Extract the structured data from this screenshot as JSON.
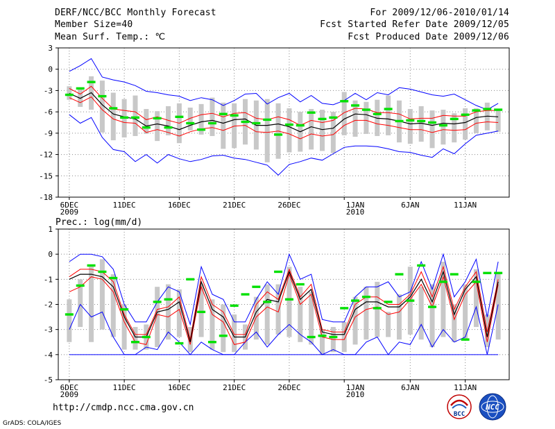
{
  "header": {
    "title": "DERF/NCC/BCC Monthly Forecast",
    "member_size": "Member Size=40",
    "variable": "Mean Surf. Temp.: ℃",
    "period": "For 2009/12/06-2010/01/14",
    "start_date": "Fcst Started Refer Date 2009/12/05",
    "produced_date": "Fcst Produced Date 2009/12/06"
  },
  "footer": {
    "url": "http://cmdp.ncc.cma.gov.cn",
    "credit": "GrADS: COLA/IGES",
    "logo_left_text": "BCC",
    "logo_right_text": "NCC"
  },
  "colors": {
    "ensemble_max_min": "#0000ff",
    "spread": "#ff0000",
    "mean": "#000000",
    "observed": "#00e000",
    "box": "#c8c8c8"
  },
  "chart_data": [
    {
      "type": "line",
      "name": "temperature",
      "title": "",
      "ylabel": "",
      "ylim": [
        -18,
        3
      ],
      "yticks": [
        3,
        0,
        -3,
        -6,
        -9,
        -12,
        -15,
        -18
      ],
      "x": [
        1,
        2,
        3,
        4,
        5,
        6,
        7,
        8,
        9,
        10,
        11,
        12,
        13,
        14,
        15,
        16,
        17,
        18,
        19,
        20,
        21,
        22,
        23,
        24,
        25,
        26,
        27,
        28,
        29,
        30,
        31,
        32,
        33,
        34,
        35,
        36,
        37,
        38,
        39,
        40
      ],
      "x_tick_positions": [
        1,
        6,
        11,
        16,
        21,
        26,
        32,
        37,
        42
      ],
      "x_tick_labels": [
        "6DEC",
        "11DEC",
        "16DEC",
        "21DEC",
        "26DEC",
        "1JAN",
        "6JAN",
        "11JAN"
      ],
      "x_tick_label_days": [
        1,
        6,
        11,
        16,
        21,
        27,
        32,
        37
      ],
      "x_year_labels": [
        {
          "day": 1,
          "label": "2009"
        },
        {
          "day": 27,
          "label": "2010"
        }
      ],
      "series": [
        {
          "name": "max",
          "values": [
            -0.3,
            0.5,
            1.5,
            -1.1,
            -1.5,
            -1.8,
            -2.3,
            -3.1,
            -3.3,
            -3.6,
            -3.8,
            -4.4,
            -4.0,
            -4.3,
            -5.1,
            -4.4,
            -3.5,
            -3.4,
            -4.9,
            -4.0,
            -3.4,
            -4.6,
            -3.7,
            -4.8,
            -5.0,
            -4.4,
            -3.4,
            -4.3,
            -3.3,
            -3.6,
            -2.6,
            -2.8,
            -3.2,
            -3.6,
            -3.8,
            -3.5,
            -4.3,
            -5.1,
            -5.7,
            -4.8
          ]
        },
        {
          "name": "upper",
          "values": [
            -2.7,
            -3.5,
            -2.4,
            -4.1,
            -5.6,
            -5.8,
            -6.0,
            -7.1,
            -6.7,
            -7.2,
            -7.6,
            -6.9,
            -6.4,
            -6.2,
            -6.7,
            -6.2,
            -6.1,
            -6.9,
            -7.1,
            -6.7,
            -7.1,
            -7.9,
            -7.2,
            -7.5,
            -7.2,
            -6.1,
            -5.5,
            -5.6,
            -6.1,
            -6.1,
            -6.3,
            -7.0,
            -6.9,
            -6.9,
            -6.5,
            -6.6,
            -6.6,
            -6.0,
            -5.8,
            -5.8
          ]
        },
        {
          "name": "mean",
          "values": [
            -3.4,
            -4.1,
            -3.3,
            -5.0,
            -6.3,
            -6.7,
            -7.0,
            -8.0,
            -7.7,
            -8.0,
            -8.5,
            -7.9,
            -7.4,
            -7.2,
            -7.6,
            -7.1,
            -7.0,
            -7.9,
            -7.9,
            -7.7,
            -8.1,
            -8.8,
            -8.1,
            -8.5,
            -8.3,
            -7.0,
            -6.3,
            -6.4,
            -6.9,
            -7.0,
            -7.3,
            -7.7,
            -7.6,
            -7.9,
            -7.6,
            -7.7,
            -7.5,
            -6.8,
            -6.6,
            -6.7
          ]
        },
        {
          "name": "lower",
          "values": [
            -4.0,
            -4.7,
            -3.9,
            -5.7,
            -7.0,
            -7.5,
            -7.6,
            -8.9,
            -8.5,
            -8.9,
            -9.4,
            -8.8,
            -8.4,
            -8.2,
            -8.6,
            -8.0,
            -7.9,
            -8.8,
            -8.9,
            -8.7,
            -9.1,
            -9.8,
            -9.1,
            -9.4,
            -9.2,
            -7.9,
            -7.2,
            -7.2,
            -7.7,
            -7.9,
            -8.2,
            -8.5,
            -8.5,
            -8.9,
            -8.5,
            -8.6,
            -8.5,
            -7.6,
            -7.4,
            -7.5
          ]
        },
        {
          "name": "min",
          "values": [
            -6.4,
            -7.6,
            -6.8,
            -9.6,
            -11.3,
            -11.6,
            -13.0,
            -12.0,
            -13.2,
            -12.0,
            -12.6,
            -13.0,
            -12.7,
            -12.2,
            -12.1,
            -12.5,
            -12.7,
            -13.1,
            -13.5,
            -14.9,
            -13.4,
            -13.0,
            -12.5,
            -12.8,
            -11.9,
            -11.0,
            -10.8,
            -10.8,
            -10.9,
            -11.2,
            -11.6,
            -11.7,
            -12.1,
            -12.4,
            -11.2,
            -11.9,
            -10.5,
            -9.3,
            -9.0,
            -8.7
          ]
        },
        {
          "name": "box_top",
          "values": [
            -2.4,
            -2.8,
            -1.0,
            -1.6,
            -3.3,
            -4.2,
            -3.7,
            -5.6,
            -5.9,
            -5.2,
            -4.8,
            -5.4,
            -4.9,
            -4.0,
            -4.7,
            -4.8,
            -4.2,
            -4.4,
            -4.2,
            -4.8,
            -5.5,
            -6.0,
            -5.6,
            -5.7,
            -6.0,
            -3.2,
            -4.4,
            -4.6,
            -4.3,
            -3.7,
            -4.4,
            -5.6,
            -5.2,
            -5.8,
            -5.7,
            -6.2,
            -5.5,
            -5.5,
            -4.7,
            -5.6
          ]
        },
        {
          "name": "box_bottom",
          "values": [
            -4.3,
            -5.3,
            -5.7,
            -8.9,
            -10.0,
            -9.6,
            -9.4,
            -9.1,
            -10.1,
            -9.3,
            -10.4,
            -8.6,
            -9.2,
            -9.4,
            -11.2,
            -11.1,
            -10.6,
            -11.3,
            -13.1,
            -12.6,
            -11.7,
            -11.6,
            -11.3,
            -11.5,
            -11.8,
            -9.3,
            -9.5,
            -9.1,
            -9.4,
            -9.3,
            -10.3,
            -10.5,
            -10.2,
            -11.1,
            -10.6,
            -10.3,
            -9.9,
            -9.0,
            -8.6,
            -8.8
          ]
        },
        {
          "name": "observed",
          "values": [
            -3.6,
            -2.7,
            -1.8,
            -3.8,
            -5.5,
            -6.8,
            -6.8,
            -8.2,
            -6.9,
            -8.2,
            -6.7,
            -7.6,
            -8.5,
            -7.6,
            -6.3,
            -6.5,
            -7.4,
            -7.6,
            -7.1,
            -9.2,
            -7.8,
            -7.9,
            -6.1,
            -7.0,
            -6.8,
            -4.5,
            -5.1,
            -5.7,
            -6.3,
            -5.6,
            -7.3,
            -7.2,
            -7.3,
            -7.5,
            -7.9,
            -7.0,
            -6.4,
            -5.8,
            -5.6,
            -5.7
          ]
        }
      ]
    },
    {
      "type": "line",
      "name": "precipitation",
      "title": "Prec.: log(mm/d)",
      "ylabel": "",
      "ylim": [
        -5,
        1
      ],
      "yticks": [
        1,
        0,
        -1,
        -2,
        -3,
        -4,
        -5
      ],
      "x": [
        1,
        2,
        3,
        4,
        5,
        6,
        7,
        8,
        9,
        10,
        11,
        12,
        13,
        14,
        15,
        16,
        17,
        18,
        19,
        20,
        21,
        22,
        23,
        24,
        25,
        26,
        27,
        28,
        29,
        30,
        31,
        32,
        33,
        34,
        35,
        36,
        37,
        38,
        39,
        40
      ],
      "x_tick_positions": [
        1,
        6,
        11,
        16,
        21,
        26,
        32,
        37,
        42
      ],
      "x_tick_labels": [
        "6DEC",
        "11DEC",
        "16DEC",
        "21DEC",
        "26DEC",
        "1JAN",
        "6JAN",
        "11JAN"
      ],
      "x_tick_label_days": [
        1,
        6,
        11,
        16,
        21,
        27,
        32,
        37
      ],
      "x_year_labels": [
        {
          "day": 1,
          "label": "2009"
        },
        {
          "day": 27,
          "label": "2010"
        }
      ],
      "series": [
        {
          "name": "max",
          "values": [
            -0.3,
            0.0,
            0.0,
            -0.1,
            -0.6,
            -2.0,
            -2.7,
            -2.7,
            -1.9,
            -1.3,
            -1.5,
            -2.8,
            -0.5,
            -1.6,
            -1.8,
            -2.7,
            -2.7,
            -1.8,
            -1.1,
            -1.6,
            0.0,
            -1.0,
            -0.8,
            -2.6,
            -2.7,
            -2.7,
            -1.7,
            -1.3,
            -1.3,
            -1.1,
            -1.7,
            -1.5,
            -0.3,
            -1.4,
            0.0,
            -1.7,
            -1.1,
            -0.2,
            -2.5,
            -0.3
          ]
        },
        {
          "name": "upper",
          "values": [
            -0.9,
            -0.6,
            -0.6,
            -0.7,
            -1.1,
            -2.4,
            -3.2,
            -3.2,
            -2.2,
            -2.1,
            -1.7,
            -3.4,
            -0.9,
            -2.0,
            -2.3,
            -3.2,
            -3.2,
            -2.0,
            -1.5,
            -1.8,
            -0.6,
            -1.7,
            -1.2,
            -3.0,
            -3.1,
            -3.1,
            -2.0,
            -1.7,
            -1.7,
            -2.0,
            -2.0,
            -1.6,
            -0.7,
            -1.7,
            -0.5,
            -2.2,
            -1.3,
            -0.7,
            -3.1,
            -1.0
          ]
        },
        {
          "name": "mean",
          "values": [
            -1.0,
            -0.8,
            -0.8,
            -0.9,
            -1.3,
            -2.5,
            -3.3,
            -3.3,
            -2.3,
            -2.2,
            -1.9,
            -3.5,
            -1.1,
            -2.2,
            -2.5,
            -3.3,
            -3.3,
            -2.3,
            -1.8,
            -1.9,
            -0.7,
            -1.8,
            -1.4,
            -3.1,
            -3.2,
            -3.2,
            -2.2,
            -1.9,
            -1.9,
            -2.1,
            -2.1,
            -1.7,
            -1.0,
            -1.9,
            -0.7,
            -2.4,
            -1.4,
            -0.9,
            -3.3,
            -1.1
          ]
        },
        {
          "name": "lower",
          "values": [
            -1.5,
            -1.3,
            -0.9,
            -1.0,
            -1.5,
            -2.7,
            -3.5,
            -3.6,
            -2.4,
            -2.5,
            -2.2,
            -3.6,
            -1.3,
            -2.4,
            -2.7,
            -3.6,
            -3.5,
            -2.5,
            -2.1,
            -2.3,
            -0.8,
            -2.0,
            -1.6,
            -3.3,
            -3.4,
            -3.4,
            -2.5,
            -2.2,
            -2.1,
            -2.4,
            -2.3,
            -1.8,
            -1.2,
            -2.1,
            -0.9,
            -2.6,
            -1.6,
            -1.1,
            -3.5,
            -1.2
          ]
        },
        {
          "name": "min",
          "values": [
            -3.0,
            -2.0,
            -2.5,
            -2.3,
            -3.3,
            -4.0,
            -4.0,
            -3.7,
            -3.8,
            -3.1,
            -3.5,
            -4.0,
            -3.5,
            -3.8,
            -4.0,
            -4.0,
            -3.5,
            -3.1,
            -3.7,
            -3.2,
            -2.8,
            -3.2,
            -3.5,
            -4.0,
            -3.8,
            -4.0,
            -4.0,
            -3.5,
            -3.3,
            -4.0,
            -3.5,
            -3.6,
            -2.8,
            -3.7,
            -3.0,
            -3.5,
            -3.3,
            -2.1,
            -4.0,
            -2.0
          ]
        },
        {
          "name": "box_top",
          "values": [
            -1.8,
            -1.0,
            -0.5,
            -0.2,
            -0.8,
            -2.0,
            -2.9,
            -2.8,
            -1.3,
            -1.2,
            -1.4,
            -2.9,
            -1.2,
            -1.8,
            -2.0,
            -2.4,
            -2.8,
            -1.7,
            -1.2,
            -1.2,
            -0.5,
            -1.3,
            -1.5,
            -3.0,
            -2.9,
            -2.7,
            -1.7,
            -1.3,
            -1.1,
            -2.3,
            -1.6,
            -0.5,
            -1.3,
            -1.2,
            -0.3,
            -2.0,
            -1.2,
            -0.6,
            -2.4,
            -0.7
          ]
        },
        {
          "name": "box_bottom",
          "values": [
            -3.5,
            -2.9,
            -3.5,
            -3.0,
            -3.3,
            -3.8,
            -3.8,
            -3.8,
            -3.7,
            -3.4,
            -3.3,
            -3.9,
            -3.3,
            -3.8,
            -3.9,
            -3.9,
            -3.8,
            -3.4,
            -3.6,
            -3.2,
            -3.3,
            -3.5,
            -3.6,
            -4.0,
            -3.9,
            -3.9,
            -3.6,
            -3.4,
            -3.3,
            -3.3,
            -3.4,
            -3.2,
            -3.4,
            -3.7,
            -3.3,
            -3.5,
            -3.4,
            -2.9,
            -3.7,
            -3.4
          ]
        },
        {
          "name": "observed",
          "values": [
            -2.4,
            -1.25,
            -0.45,
            -0.7,
            -0.95,
            -2.2,
            -3.5,
            -3.3,
            -1.9,
            -1.8,
            -3.55,
            -1.0,
            -2.3,
            -3.5,
            -3.25,
            -2.05,
            -1.6,
            -1.3,
            -1.9,
            -0.7,
            -1.8,
            -1.2,
            -3.3,
            -3.25,
            -3.3,
            -2.15,
            -1.85,
            -1.7,
            -2.15,
            -1.9,
            -0.8,
            -1.85,
            -0.45,
            -2.1,
            -1.1,
            -0.8,
            -3.4,
            -1.1,
            -0.75,
            -0.75
          ]
        }
      ]
    }
  ]
}
